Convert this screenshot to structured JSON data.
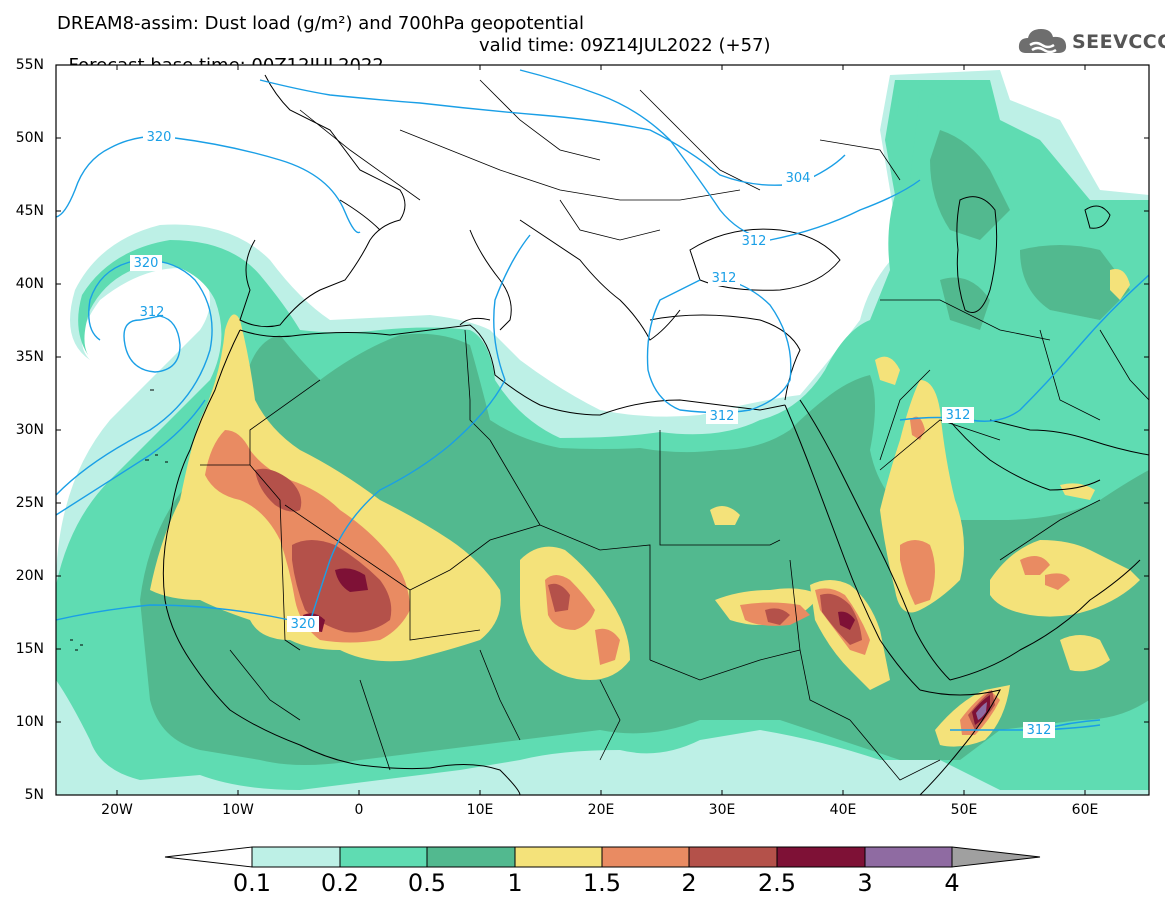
{
  "header": {
    "title_line1": "DREAM8-assim: Dust load (g/m²) and 700hPa geopotential",
    "title_line2_base": "Forecast base time: 00Z12JUL2022",
    "title_line2_valid": "valid time: 09Z14JUL2022 (+57)"
  },
  "logo": {
    "text": "SEEVCCC",
    "icon": "cloud-icon"
  },
  "map": {
    "lat_labels": [
      "55N",
      "50N",
      "45N",
      "40N",
      "35N",
      "30N",
      "25N",
      "20N",
      "15N",
      "10N",
      "5N"
    ],
    "lon_labels": [
      "20W",
      "10W",
      "0",
      "10E",
      "20E",
      "30E",
      "40E",
      "50E",
      "60E"
    ],
    "contour_labels": [
      "320",
      "320",
      "312",
      "304",
      "312",
      "312",
      "312",
      "312",
      "320",
      "312"
    ],
    "colors": {
      "c1": "#bdf0e6",
      "c2": "#5fdcb2",
      "c3": "#52b98f",
      "c4": "#f4e27a",
      "c5": "#e98b62",
      "c6": "#b4514a",
      "c7": "#7e1136",
      "c8": "#8f6ba2",
      "contour": "#1a9fe6"
    }
  },
  "colorbar": {
    "labels": [
      "0.1",
      "0.2",
      "0.5",
      "1",
      "1.5",
      "2",
      "2.5",
      "3",
      "4"
    ],
    "colors": [
      "#ffffff",
      "#bdf0e6",
      "#5fdcb2",
      "#52b98f",
      "#f4e27a",
      "#e98b62",
      "#b4514a",
      "#7e1136",
      "#8f6ba2",
      "#a0a0a0"
    ]
  }
}
